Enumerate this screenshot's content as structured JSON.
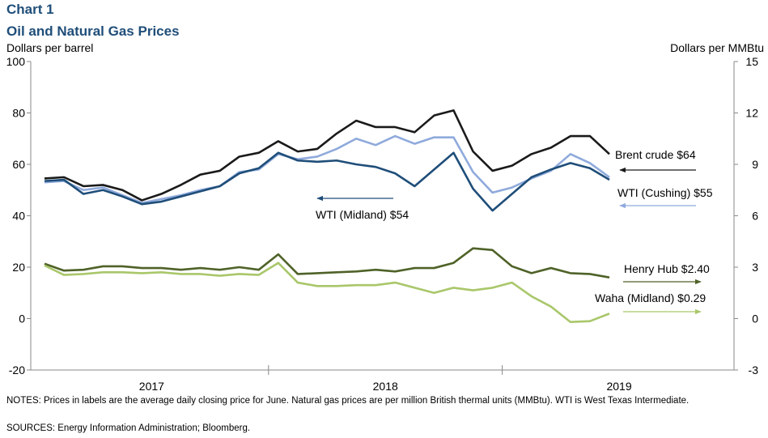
{
  "chart_data": {
    "type": "line",
    "title": "Chart 1",
    "subtitle": "Oil and Natural Gas Prices",
    "y_label": "Dollars per barrel",
    "y2_label": "Dollars per MMBtu",
    "categories": [
      null,
      null,
      null,
      null,
      null,
      null,
      null,
      null,
      null,
      null,
      null,
      null,
      null,
      null,
      null,
      null,
      null,
      null,
      null,
      null,
      null,
      null,
      null,
      null,
      null,
      null,
      null,
      null,
      null,
      null
    ],
    "year_labels": [
      "2017",
      "2018",
      "2019"
    ],
    "ylim": [
      -20,
      100
    ],
    "yticks": [
      -20,
      0,
      20,
      40,
      60,
      80,
      100
    ],
    "y2lim": [
      -3,
      15
    ],
    "y2ticks": [
      -3,
      0,
      3,
      6,
      9,
      12,
      15
    ],
    "grid": false,
    "series": [
      {
        "name": "Brent crude $64",
        "color": "#1a1a1a",
        "values": [
          54.5,
          55,
          51.5,
          52,
          50,
          46,
          48.5,
          52,
          56,
          57.5,
          63,
          64.5,
          69,
          65,
          66,
          72,
          77,
          74.5,
          74.5,
          72.5,
          79,
          81,
          65,
          57.5,
          59.5,
          64,
          66.5,
          71,
          71,
          64
        ]
      },
      {
        "name": "WTI (Cushing) $55",
        "color": "#8faadc",
        "values": [
          53,
          53.5,
          50,
          51,
          48,
          45,
          46.5,
          48,
          50,
          51.5,
          57,
          58,
          64,
          62,
          63,
          66,
          70,
          67.5,
          71,
          68,
          70.5,
          70.5,
          57,
          49,
          51,
          54.5,
          57.5,
          64,
          60.5,
          55
        ]
      },
      {
        "name": "WTI (Midland) $54",
        "color": "#1f4e79",
        "values": [
          53.5,
          54,
          48.5,
          50,
          47.5,
          44.5,
          45.5,
          47.5,
          49.5,
          51.5,
          56.5,
          58.5,
          64.5,
          61.5,
          61,
          61.5,
          60,
          59,
          56.5,
          51.5,
          58,
          64.5,
          50.5,
          42,
          48.5,
          55,
          58,
          60.5,
          58.5,
          54
        ]
      },
      {
        "name": "Henry Hub $2.40",
        "color": "#4f6228",
        "axis": "y2",
        "values": [
          3.2,
          2.8,
          2.85,
          3.05,
          3.05,
          2.95,
          2.95,
          2.85,
          2.95,
          2.85,
          3.0,
          2.85,
          3.75,
          2.6,
          2.65,
          2.7,
          2.75,
          2.85,
          2.75,
          2.95,
          2.95,
          3.25,
          4.1,
          4.0,
          3.05,
          2.65,
          2.95,
          2.65,
          2.6,
          2.4
        ]
      },
      {
        "name": "Waha (Midland) $0.29",
        "color": "#a9c76a",
        "axis": "y2",
        "values": [
          3.1,
          2.55,
          2.6,
          2.7,
          2.7,
          2.65,
          2.7,
          2.6,
          2.6,
          2.5,
          2.6,
          2.55,
          3.25,
          2.1,
          1.9,
          1.9,
          1.95,
          1.95,
          2.1,
          1.8,
          1.5,
          1.8,
          1.65,
          1.8,
          2.1,
          1.3,
          0.7,
          -0.2,
          -0.15,
          0.29
        ]
      }
    ],
    "notes": "NOTES: Prices in labels are the average daily closing price for June. Natural gas prices are per million British thermal units (MMBtu). WTI is West Texas Intermediate.",
    "sources": "SOURCES: Energy Information Administration; Bloomberg."
  }
}
